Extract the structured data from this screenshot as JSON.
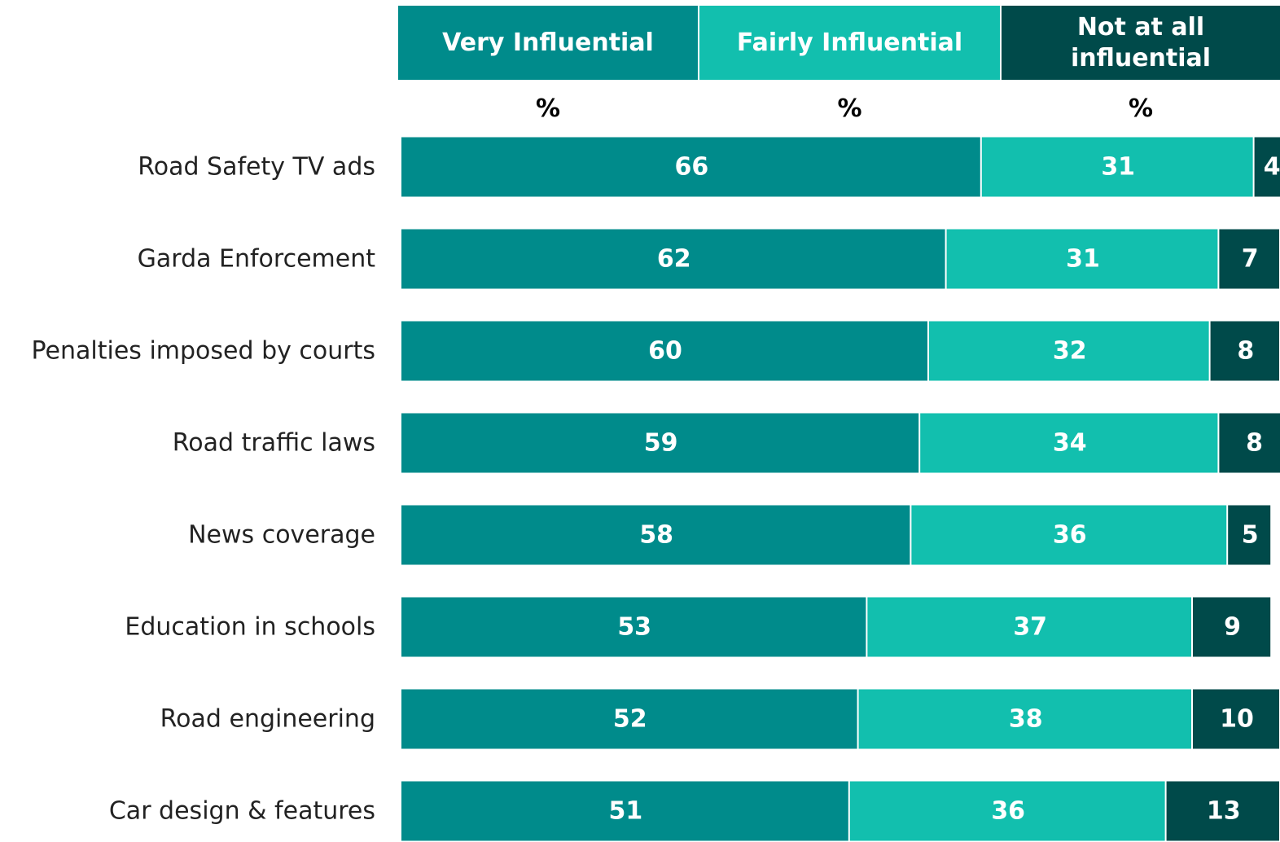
{
  "chart_data": {
    "type": "stacked-bar-horizontal",
    "categories": [
      "Road Safety TV ads",
      "Garda Enforcement",
      "Penalties imposed by courts",
      "Road traffic laws",
      "News coverage",
      "Education in schools",
      "Road engineering",
      "Car design & features"
    ],
    "series": [
      {
        "name": "Very Influential",
        "color": "#008b8b",
        "values": [
          66,
          62,
          60,
          59,
          58,
          53,
          52,
          51
        ]
      },
      {
        "name": "Fairly Influential",
        "color": "#12bfae",
        "values": [
          31,
          31,
          32,
          34,
          36,
          37,
          38,
          36
        ]
      },
      {
        "name": "Not at all influential",
        "color": "#004a4a",
        "values": [
          4,
          7,
          8,
          8,
          5,
          9,
          10,
          13
        ]
      }
    ],
    "column_units": [
      "%",
      "%",
      "%"
    ],
    "xlim": [
      0,
      100
    ]
  }
}
